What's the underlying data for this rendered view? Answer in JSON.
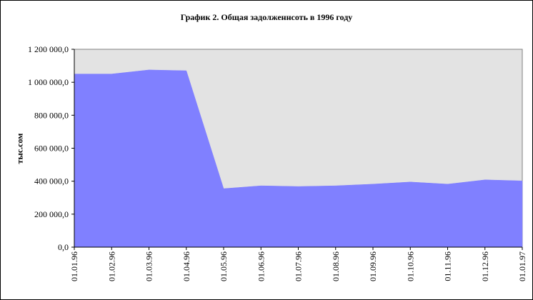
{
  "chart_data": {
    "type": "area",
    "title": "График 2. Общая задолженнсоть в 1996 году",
    "xlabel": "",
    "ylabel": "тыс.сом",
    "categories": [
      "01.01.96",
      "01.02.96",
      "01.03.96",
      "01.04.96",
      "01.05.96",
      "01.06.96",
      "01.07.96",
      "01.08.96",
      "01.09.96",
      "01.10.96",
      "01.11.96",
      "01.12.96",
      "01.01.97"
    ],
    "series": [
      {
        "values": [
          1050000,
          1050000,
          1075000,
          1070000,
          355000,
          372000,
          368000,
          372000,
          382000,
          395000,
          382000,
          408000,
          402000
        ]
      }
    ],
    "y_ticks": [
      0,
      200000,
      400000,
      600000,
      800000,
      1000000,
      1200000
    ],
    "y_tick_labels": [
      "0,0",
      "200 000,0",
      "400 000,0",
      "600 000,0",
      "800 000,0",
      "1 000 000,0",
      "1 200 000,0"
    ],
    "ylim": [
      0,
      1200000
    ],
    "grid": false,
    "legend": "none",
    "colors": {
      "area_fill": "#8080ff",
      "plot_background": "#e3e3e3",
      "axis": "#000000",
      "text": "#000000"
    }
  }
}
